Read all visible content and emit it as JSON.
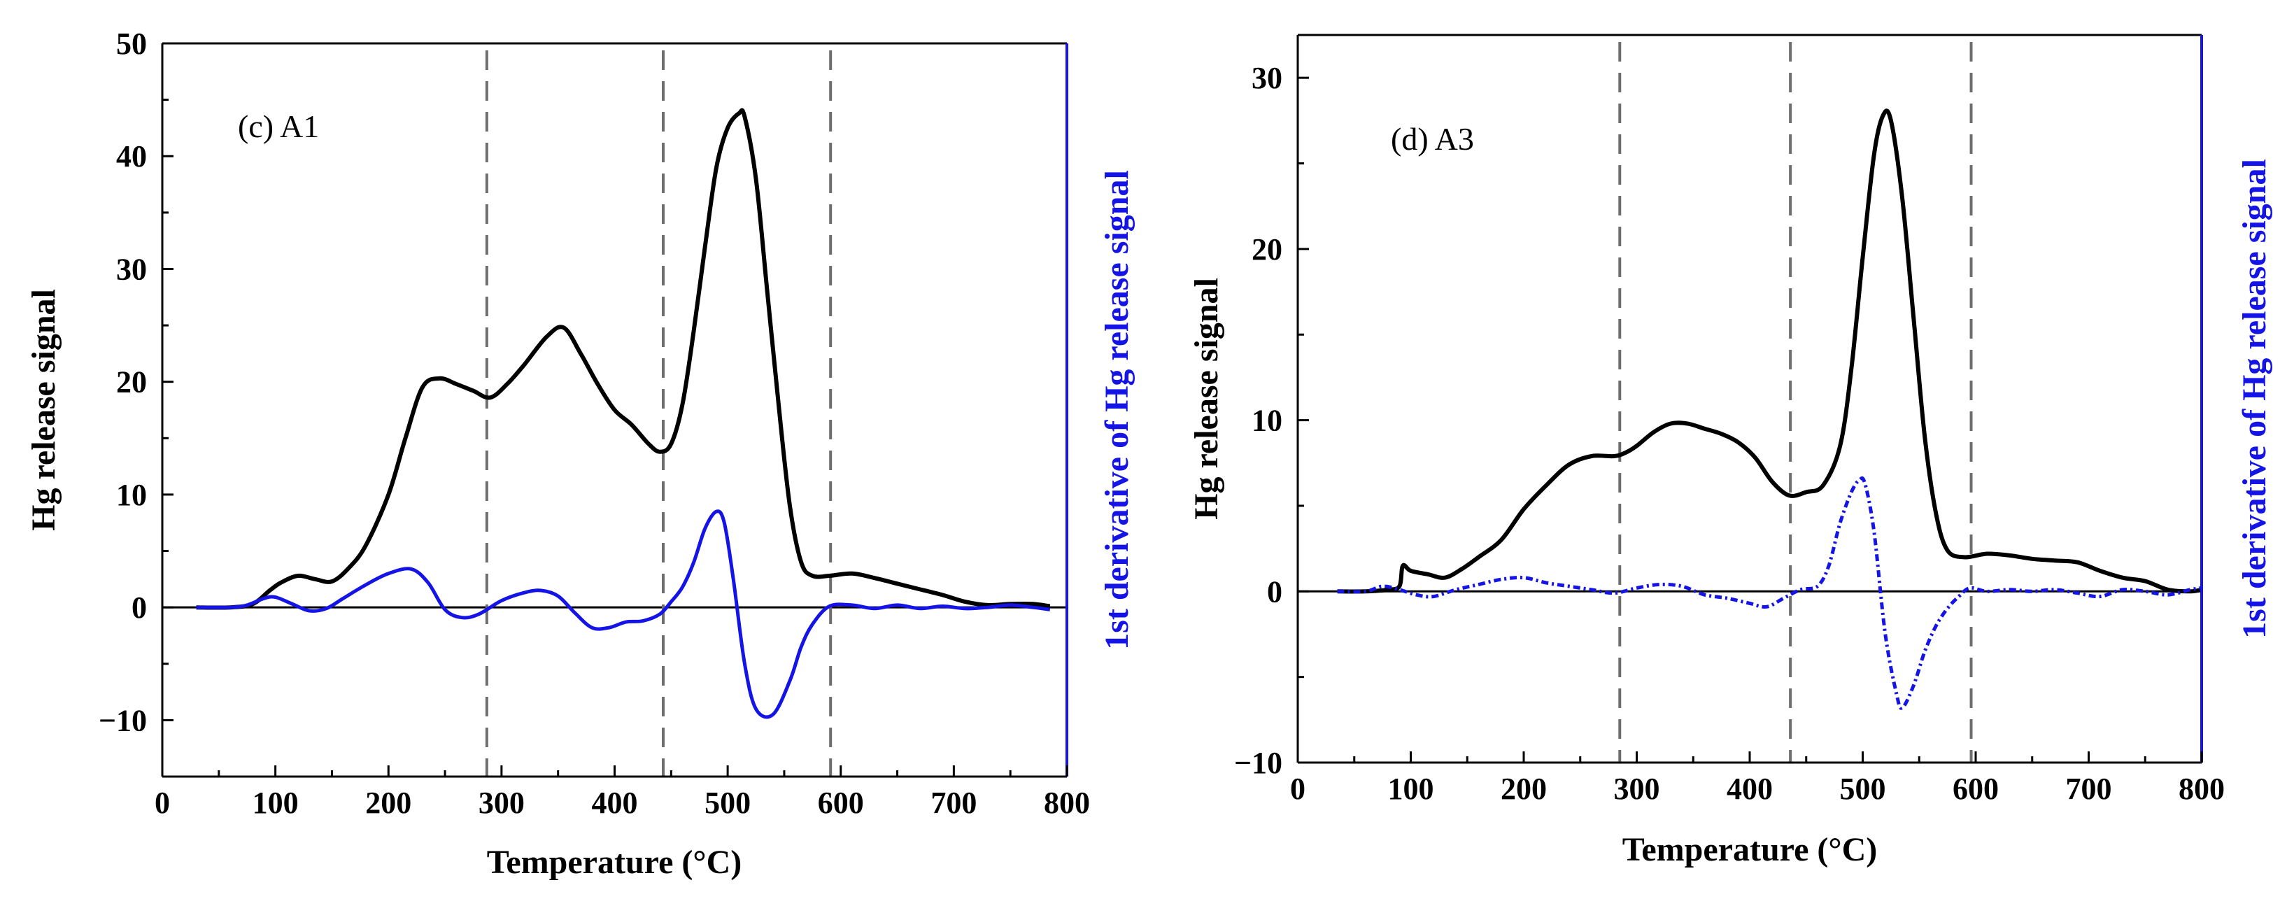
{
  "colors": {
    "signal": "#000000",
    "derivative": "#1414e6",
    "guide": "#6e6e6e",
    "axis": "#000000"
  },
  "chart_data": [
    {
      "type": "line",
      "panel_label": "(c) A1",
      "xlabel": "Temperature (°C)",
      "ylabel": "Hg release signal",
      "ylabel_right": "1st derivative of Hg release signal",
      "xlim": [
        0,
        800
      ],
      "ylim": [
        -15,
        50
      ],
      "xticks": [
        "0",
        "100",
        "200",
        "300",
        "400",
        "500",
        "600",
        "700",
        "800"
      ],
      "xtick_values": [
        0,
        100,
        200,
        300,
        400,
        500,
        600,
        700,
        800
      ],
      "yticks": [
        "−10",
        "0",
        "10",
        "20",
        "30",
        "40",
        "50"
      ],
      "ytick_values": [
        -10,
        0,
        10,
        20,
        30,
        40,
        50
      ],
      "vertical_lines": [
        287,
        443,
        591
      ],
      "zero_line": 0,
      "series": [
        {
          "name": "Hg release signal",
          "style": "solid",
          "x": [
            30,
            60,
            80,
            95,
            105,
            120,
            135,
            150,
            165,
            180,
            200,
            215,
            230,
            245,
            260,
            275,
            290,
            305,
            320,
            340,
            355,
            370,
            385,
            400,
            415,
            430,
            440,
            450,
            460,
            470,
            480,
            490,
            500,
            510,
            515,
            525,
            535,
            545,
            555,
            565,
            575,
            590,
            610,
            630,
            650,
            670,
            690,
            710,
            730,
            750,
            770,
            785
          ],
          "values": [
            0,
            0,
            0.3,
            1.5,
            2.2,
            2.8,
            2.5,
            2.3,
            3.5,
            5.5,
            10,
            15,
            19.5,
            20.3,
            19.8,
            19.2,
            18.6,
            19.8,
            21.5,
            24,
            24.8,
            22.5,
            19.8,
            17.5,
            16.2,
            14.5,
            13.8,
            14.5,
            18,
            24.5,
            32,
            39,
            42.5,
            43.8,
            43.5,
            38,
            28,
            18,
            9,
            4,
            2.8,
            2.8,
            3,
            2.6,
            2.1,
            1.6,
            1.1,
            0.5,
            0.2,
            0.3,
            0.3,
            0.1
          ]
        },
        {
          "name": "1st derivative of Hg release signal",
          "style": "solid",
          "x": [
            30,
            60,
            75,
            90,
            100,
            115,
            130,
            145,
            160,
            180,
            200,
            220,
            235,
            250,
            265,
            280,
            300,
            320,
            335,
            350,
            365,
            380,
            395,
            410,
            425,
            440,
            450,
            460,
            470,
            480,
            490,
            497,
            505,
            515,
            525,
            540,
            555,
            565,
            575,
            590,
            610,
            630,
            650,
            670,
            690,
            710,
            730,
            750,
            770,
            785
          ],
          "values": [
            0,
            0,
            0.2,
            0.8,
            0.9,
            0.3,
            -0.3,
            -0.1,
            0.8,
            2,
            3,
            3.4,
            2.2,
            -0.2,
            -0.9,
            -0.6,
            0.6,
            1.3,
            1.5,
            1,
            -0.5,
            -1.8,
            -1.8,
            -1.3,
            -1.2,
            -0.6,
            0.5,
            1.8,
            4,
            7,
            8.5,
            7.5,
            2.5,
            -5,
            -9,
            -9.5,
            -6.5,
            -3.5,
            -1.5,
            0.1,
            0.2,
            -0.1,
            0.2,
            -0.1,
            0.1,
            -0.1,
            0,
            0.2,
            0,
            -0.2
          ]
        }
      ]
    },
    {
      "type": "line",
      "panel_label": "(d) A3",
      "xlabel": "Temperature (°C)",
      "ylabel": "Hg release signal",
      "ylabel_right": "1st derivative of Hg release signal",
      "xlim": [
        0,
        800
      ],
      "ylim": [
        -10,
        32.5
      ],
      "xticks": [
        "0",
        "100",
        "200",
        "300",
        "400",
        "500",
        "600",
        "700",
        "800"
      ],
      "xtick_values": [
        0,
        100,
        200,
        300,
        400,
        500,
        600,
        700,
        800
      ],
      "yticks": [
        "−10",
        "0",
        "10",
        "20",
        "30"
      ],
      "ytick_values": [
        -10,
        0,
        10,
        20,
        30
      ],
      "vertical_lines": [
        285,
        436,
        596
      ],
      "zero_line": 0,
      "series": [
        {
          "name": "Hg release signal",
          "style": "solid",
          "x": [
            35,
            60,
            80,
            90,
            93,
            100,
            115,
            130,
            145,
            160,
            180,
            200,
            220,
            240,
            260,
            280,
            290,
            300,
            315,
            330,
            345,
            360,
            375,
            390,
            405,
            420,
            435,
            450,
            465,
            480,
            490,
            500,
            510,
            518,
            525,
            535,
            545,
            555,
            565,
            575,
            590,
            610,
            630,
            650,
            670,
            690,
            710,
            730,
            750,
            770,
            790,
            800
          ],
          "values": [
            0,
            0,
            0.1,
            0.3,
            1.5,
            1.2,
            1,
            0.8,
            1.3,
            2,
            3,
            4.8,
            6.2,
            7.4,
            7.9,
            7.9,
            8.1,
            8.5,
            9.3,
            9.8,
            9.8,
            9.5,
            9.2,
            8.7,
            7.8,
            6.4,
            5.6,
            5.8,
            6.2,
            8.5,
            13,
            19.5,
            25.5,
            27.8,
            27.5,
            23,
            16,
            9,
            4.5,
            2.4,
            2,
            2.2,
            2.1,
            1.9,
            1.8,
            1.7,
            1.2,
            0.8,
            0.6,
            0.1,
            0,
            0.1
          ]
        },
        {
          "name": "1st derivative of Hg release signal",
          "style": "dash-dot",
          "x": [
            35,
            60,
            75,
            90,
            105,
            120,
            140,
            160,
            180,
            200,
            220,
            240,
            260,
            280,
            300,
            320,
            340,
            360,
            380,
            400,
            415,
            430,
            445,
            460,
            470,
            480,
            490,
            497,
            502,
            510,
            520,
            530,
            535,
            545,
            555,
            565,
            575,
            585,
            595,
            610,
            630,
            650,
            670,
            690,
            710,
            730,
            750,
            770,
            790,
            800
          ],
          "values": [
            0,
            0,
            0.3,
            0.1,
            -0.2,
            -0.3,
            0.1,
            0.4,
            0.7,
            0.8,
            0.5,
            0.3,
            0.1,
            -0.1,
            0.2,
            0.4,
            0.3,
            -0.2,
            -0.4,
            -0.7,
            -0.9,
            -0.4,
            0.1,
            0.3,
            1.5,
            4,
            5.8,
            6.5,
            6.3,
            3.5,
            -2.5,
            -6,
            -6.8,
            -5.5,
            -3.5,
            -2,
            -1,
            -0.3,
            0.2,
            0,
            0.1,
            0,
            0.1,
            -0.1,
            -0.3,
            0.1,
            0,
            -0.2,
            0.1,
            0.2
          ]
        }
      ]
    }
  ]
}
